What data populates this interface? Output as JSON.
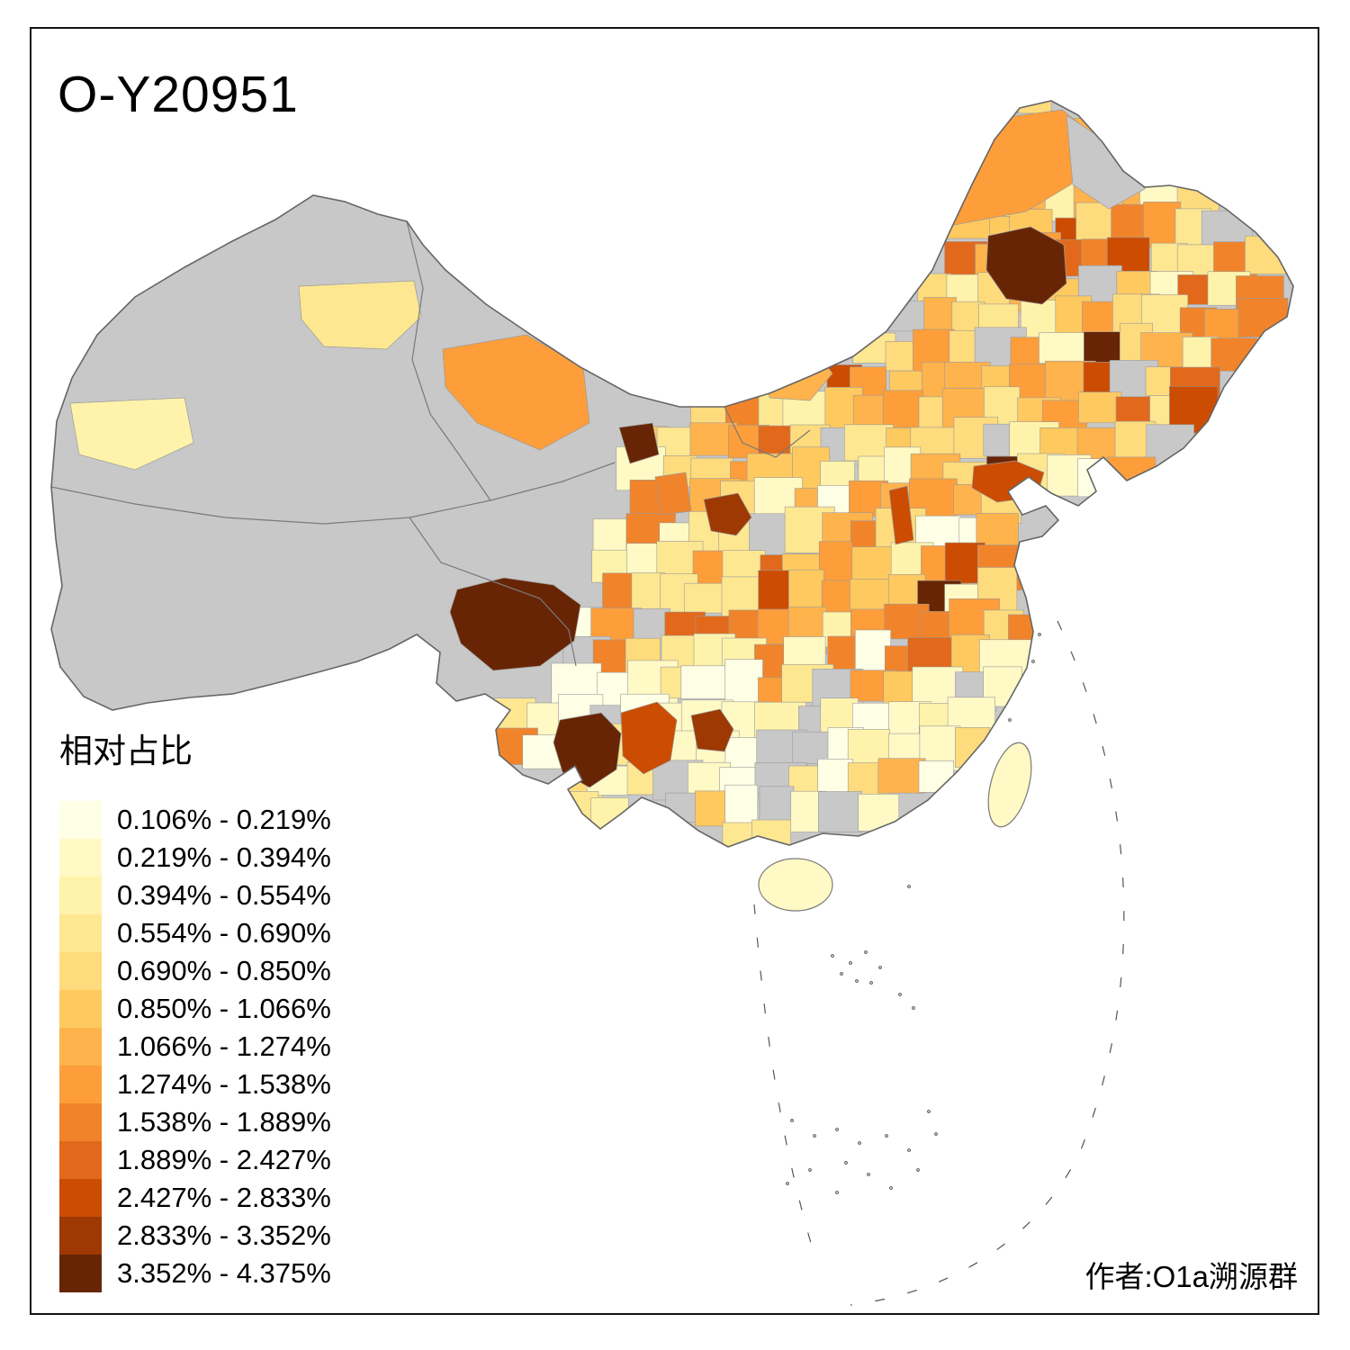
{
  "title": "O-Y20951",
  "legend": {
    "title": "相对占比",
    "items": [
      {
        "label": "0.106% - 0.219%",
        "color": "#FFFFE5"
      },
      {
        "label": "0.219% - 0.394%",
        "color": "#FFF9C5"
      },
      {
        "label": "0.394% - 0.554%",
        "color": "#FFF3AB"
      },
      {
        "label": "0.554% - 0.690%",
        "color": "#FEE791"
      },
      {
        "label": "0.690% - 0.850%",
        "color": "#FEDB7C"
      },
      {
        "label": "0.850% - 1.066%",
        "color": "#FEC95F"
      },
      {
        "label": "1.066% - 1.274%",
        "color": "#FEB34C"
      },
      {
        "label": "1.274% - 1.538%",
        "color": "#FD9E3A"
      },
      {
        "label": "1.538% - 1.889%",
        "color": "#F1842A"
      },
      {
        "label": "1.889% - 2.427%",
        "color": "#E2691B"
      },
      {
        "label": "2.427% - 2.833%",
        "color": "#CC4C02"
      },
      {
        "label": "2.833% - 3.352%",
        "color": "#9E3903"
      },
      {
        "label": "3.352% - 4.375%",
        "color": "#672505"
      }
    ]
  },
  "author": "作者:O1a溯源群",
  "map": {
    "nodata_color": "#C8C8C8",
    "boundary_color": "#666666",
    "inner_boundary_color": "#7A7A7A",
    "cell_stroke_color": "#9B9B9B",
    "sea_dash_color": "#555555",
    "background": "#FFFFFF"
  }
}
